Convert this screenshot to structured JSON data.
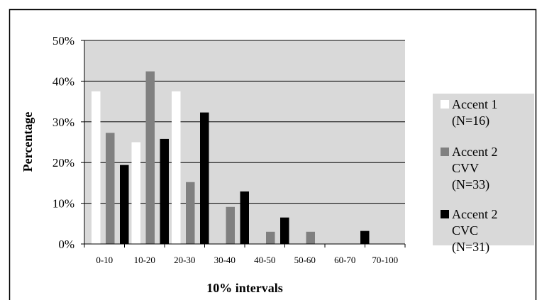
{
  "chart_data": {
    "type": "bar",
    "title": "",
    "xlabel": "10% intervals",
    "ylabel": "Percentage",
    "ylim": [
      0,
      50
    ],
    "yticks": [
      "0%",
      "10%",
      "20%",
      "30%",
      "40%",
      "50%"
    ],
    "grid": true,
    "legend_position": "right",
    "categories": [
      "0-10",
      "10-20",
      "20-30",
      "30-40",
      "40-50",
      "50-60",
      "60-70",
      "70-100"
    ],
    "series": [
      {
        "name": "Accent 1 (N=16)",
        "legend_lines": [
          "Accent 1",
          "(N=16)"
        ],
        "color": "#ffffff",
        "values": [
          37.5,
          25,
          37.5,
          0,
          0,
          0,
          0,
          0
        ]
      },
      {
        "name": "Accent 2 CVV (N=33)",
        "legend_lines": [
          "Accent 2",
          "CVV",
          "(N=33)"
        ],
        "color": "#808080",
        "values": [
          27.3,
          42.4,
          15.2,
          9.1,
          3.0,
          3.0,
          0,
          0
        ]
      },
      {
        "name": "Accent 2 CVC (N=31)",
        "legend_lines": [
          "Accent 2",
          "CVC",
          "(N=31)"
        ],
        "color": "#000000",
        "values": [
          19.4,
          25.8,
          32.3,
          12.9,
          6.5,
          0,
          3.2,
          0
        ]
      }
    ],
    "colors": {
      "plot_background": "#d9d9d9",
      "legend_background": "#d9d9d9"
    }
  }
}
